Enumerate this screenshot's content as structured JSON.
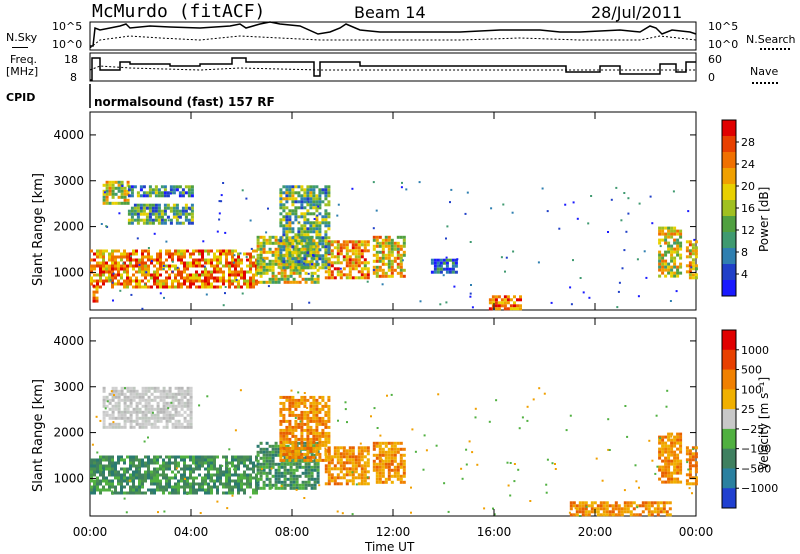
{
  "header": {
    "station": "McMurdo (fitACF)",
    "beam": "Beam 14",
    "date": "28/Jul/2011"
  },
  "top_panels": {
    "nsky_label": "N.Sky",
    "nsearch_label": "N.Search",
    "freq_label_1": "Freq.",
    "freq_label_2": "[MHz]",
    "nave_label": "Nave",
    "cpid_label": "CPID",
    "cpid_value": "normalsound (fast) 157 RF",
    "nsky_ticks": [
      "10^5",
      "10^0"
    ],
    "nsearch_ticks": [
      "10^5",
      "10^0"
    ],
    "freq_ticks": [
      "18",
      "8"
    ],
    "nave_ticks": [
      "60",
      "0"
    ]
  },
  "chart_data": [
    {
      "type": "heatmap",
      "name": "power",
      "ylabel": "Slant Range [km]",
      "yticks": [
        "4000",
        "3000",
        "2000",
        "1000"
      ],
      "ylim": [
        180,
        4500
      ],
      "xlim": [
        "00:00",
        "00:00"
      ],
      "colorbar_label": "Power [dB]",
      "colorbar_ticks": [
        "28",
        "24",
        "20",
        "16",
        "12",
        "8",
        "4"
      ],
      "colorbar_colors": [
        "#1a1aff",
        "#2040c8",
        "#2f7fb0",
        "#3f9a70",
        "#50a040",
        "#a0c020",
        "#e8d000",
        "#f0a000",
        "#f07000",
        "#e84000",
        "#e00000"
      ],
      "bands": [
        {
          "x0": 0.0,
          "x1": 6.6,
          "y0": 700,
          "y1": 1500,
          "level": 0.75
        },
        {
          "x0": 6.6,
          "x1": 9.0,
          "y0": 800,
          "y1": 1800,
          "level": 0.55
        },
        {
          "x0": 9.3,
          "x1": 11.0,
          "y0": 850,
          "y1": 1700,
          "level": 0.7
        },
        {
          "x0": 11.2,
          "x1": 12.5,
          "y0": 900,
          "y1": 1800,
          "level": 0.6
        },
        {
          "x0": 0.5,
          "x1": 1.5,
          "y0": 2500,
          "y1": 3000,
          "level": 0.55
        },
        {
          "x0": 1.5,
          "x1": 4.0,
          "y0": 2100,
          "y1": 2500,
          "level": 0.35
        },
        {
          "x0": 1.5,
          "x1": 4.0,
          "y0": 2700,
          "y1": 2900,
          "level": 0.3
        },
        {
          "x0": 7.5,
          "x1": 9.5,
          "y0": 1100,
          "y1": 2900,
          "level": 0.4
        },
        {
          "x0": 22.5,
          "x1": 23.4,
          "y0": 900,
          "y1": 2000,
          "level": 0.55
        },
        {
          "x0": 23.6,
          "x1": 24.0,
          "y0": 900,
          "y1": 1700,
          "level": 0.65
        },
        {
          "x0": 0.1,
          "x1": 0.3,
          "y0": 400,
          "y1": 800,
          "level": 0.8
        },
        {
          "x0": 15.8,
          "x1": 17.0,
          "y0": 200,
          "y1": 500,
          "level": 0.8
        },
        {
          "x0": 13.5,
          "x1": 14.5,
          "y0": 1000,
          "y1": 1300,
          "level": 0.2
        }
      ]
    },
    {
      "type": "heatmap",
      "name": "velocity",
      "ylabel": "Slant Range [km]",
      "yticks": [
        "4000",
        "3000",
        "2000",
        "1000"
      ],
      "ylim": [
        180,
        4500
      ],
      "xlim": [
        "00:00",
        "00:00"
      ],
      "xticks": [
        "00:00",
        "04:00",
        "08:00",
        "12:00",
        "16:00",
        "20:00",
        "00:00"
      ],
      "xlabel": "Time UT",
      "colorbar_label": "Velocity [m s⁻¹]",
      "colorbar_ticks": [
        "1000",
        "500",
        "100",
        "25",
        "−25",
        "−100",
        "−500",
        "−1000"
      ],
      "colorbar_colors": [
        "#2040d0",
        "#2a80a0",
        "#3f8060",
        "#50b040",
        "#c8c8c8",
        "#f0b000",
        "#f08000",
        "#e84000",
        "#e00000"
      ],
      "bands": [
        {
          "x0": 0.0,
          "x1": 6.6,
          "y0": 700,
          "y1": 1500,
          "kind": "green"
        },
        {
          "x0": 6.6,
          "x1": 9.0,
          "y0": 800,
          "y1": 1800,
          "kind": "green"
        },
        {
          "x0": 9.3,
          "x1": 11.0,
          "y0": 850,
          "y1": 1700,
          "kind": "orange"
        },
        {
          "x0": 11.2,
          "x1": 12.5,
          "y0": 900,
          "y1": 1800,
          "kind": "orange"
        },
        {
          "x0": 0.5,
          "x1": 4.0,
          "y0": 2100,
          "y1": 3000,
          "kind": "gray"
        },
        {
          "x0": 7.5,
          "x1": 9.5,
          "y0": 1400,
          "y1": 2800,
          "kind": "orange"
        },
        {
          "x0": 22.5,
          "x1": 23.4,
          "y0": 900,
          "y1": 2000,
          "kind": "orange"
        },
        {
          "x0": 23.6,
          "x1": 24.0,
          "y0": 900,
          "y1": 1700,
          "kind": "orange"
        },
        {
          "x0": 19.0,
          "x1": 23.0,
          "y0": 200,
          "y1": 500,
          "kind": "orange"
        }
      ]
    }
  ]
}
